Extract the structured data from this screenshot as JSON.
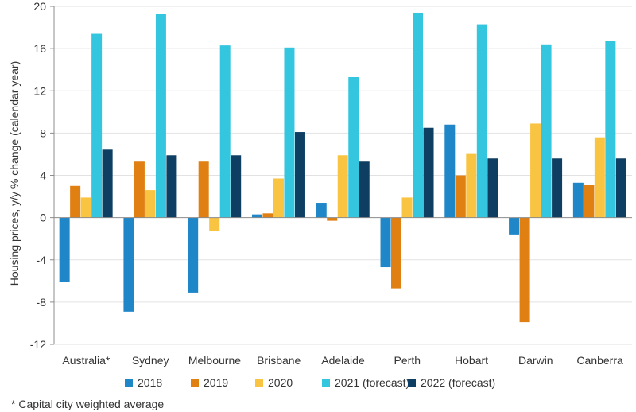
{
  "chart_data": {
    "type": "bar",
    "ylabel": "Housing prices, y/y % change (calendar year)",
    "ylim": [
      -12,
      20
    ],
    "yticks": [
      -12,
      -8,
      -4,
      0,
      4,
      8,
      12,
      16,
      20
    ],
    "grid": "horizontal",
    "legend_position": "bottom",
    "categories": [
      "Australia*",
      "Sydney",
      "Melbourne",
      "Brisbane",
      "Adelaide",
      "Perth",
      "Hobart",
      "Darwin",
      "Canberra"
    ],
    "series": [
      {
        "name": "2018",
        "color": "#1F86C8",
        "values": [
          -6.1,
          -8.9,
          -7.1,
          0.3,
          1.4,
          -4.7,
          8.8,
          -1.6,
          3.3
        ]
      },
      {
        "name": "2019",
        "color": "#E07F12",
        "values": [
          3.0,
          5.3,
          5.3,
          0.4,
          -0.3,
          -6.7,
          4.0,
          -9.9,
          3.1
        ]
      },
      {
        "name": "2020",
        "color": "#F9C441",
        "values": [
          1.9,
          2.6,
          -1.3,
          3.7,
          5.9,
          1.9,
          6.1,
          8.9,
          7.6
        ]
      },
      {
        "name": "2021 (forecast)",
        "color": "#35C6DF",
        "values": [
          17.4,
          19.3,
          16.3,
          16.1,
          13.3,
          19.4,
          18.3,
          16.4,
          16.7
        ]
      },
      {
        "name": "2022 (forecast)",
        "color": "#0E3F63",
        "values": [
          6.5,
          5.9,
          5.9,
          8.1,
          5.3,
          8.5,
          5.6,
          5.6,
          5.6
        ]
      }
    ]
  },
  "footnote": "* Capital city weighted average"
}
